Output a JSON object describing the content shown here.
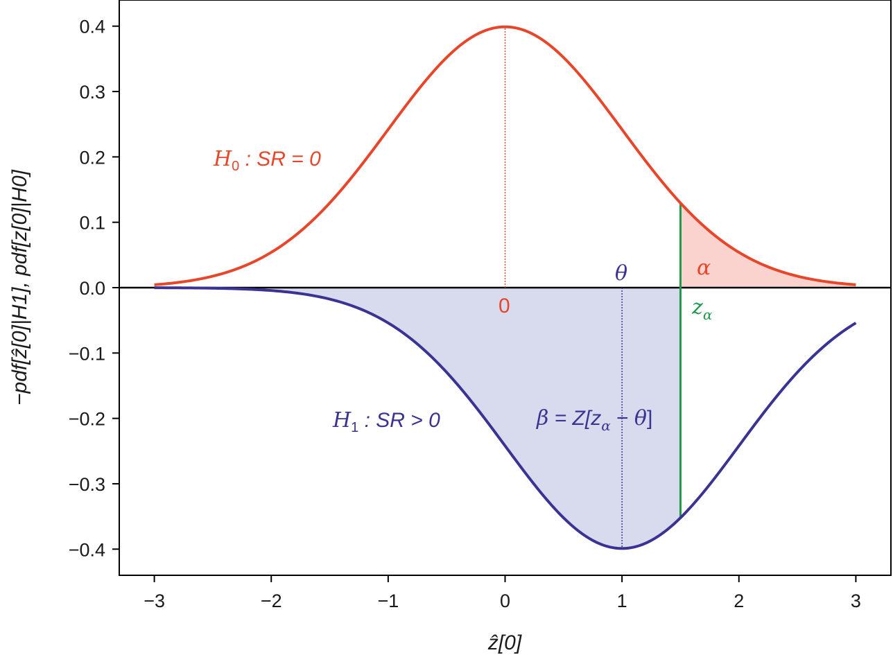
{
  "chart_data": {
    "type": "line",
    "xlabel": "ẑ[0]",
    "ylabel": "−pdf[ẑ[0]|H1], pdf[z[0]|H0]",
    "xlim": [
      -3.3,
      3.3
    ],
    "ylim": [
      -0.44,
      0.44
    ],
    "x_ticks": [
      -3,
      -2,
      -1,
      0,
      1,
      2,
      3
    ],
    "x_tick_labels": [
      "−3",
      "−2",
      "−1",
      "0",
      "1",
      "2",
      "3"
    ],
    "y_ticks": [
      0.4,
      0.3,
      0.2,
      0.1,
      0.0,
      -0.1,
      -0.2,
      -0.3,
      -0.4
    ],
    "y_tick_labels": [
      "0.4",
      "0.3",
      "0.2",
      "0.1",
      "0.0",
      "−0.1",
      "−0.2",
      "−0.3",
      "−0.4"
    ],
    "grid": false,
    "legend": "none",
    "x_range": [
      -3,
      3
    ],
    "series": [
      {
        "mean": 0,
        "sd": 1,
        "sign": 1,
        "color": "#e8462a"
      },
      {
        "mean": 1,
        "sd": 1,
        "sign": -1,
        "color": "#3a3393"
      }
    ],
    "critical_value": 1.5,
    "shading": {
      "alpha_region": {
        "from": 1.5,
        "to": 3,
        "color": "#fbd3ce"
      },
      "beta_region": {
        "from": -3,
        "to": 1.5,
        "color": "#d8dbee"
      }
    },
    "reference_lines": [
      {
        "x": 0,
        "series": 0,
        "style": "dotted",
        "color": "#e8462a"
      },
      {
        "x": 1,
        "series": 1,
        "style": "dotted",
        "color": "#3a3393"
      },
      {
        "x": 1.5,
        "style": "solid",
        "color": "#1e9a4a"
      }
    ],
    "annotations": {
      "h0_main": "H",
      "h0_sub": "0",
      "h0_rest": " : SR = 0",
      "h1_main": "H",
      "h1_sub": "1",
      "h1_rest": " : SR > 0",
      "alpha": "α",
      "theta": "θ",
      "zero": "0",
      "z_alpha_main": "z",
      "z_alpha_sub": "α",
      "beta_1": "β",
      "beta_2": " = Z[z",
      "beta_3": "α",
      "beta_4": " − ",
      "beta_5": "θ",
      "beta_6": "]"
    },
    "colors": {
      "h0": "#e8462a",
      "h1": "#3a3393",
      "critical": "#1e9a4a",
      "axis": "#000000"
    }
  }
}
